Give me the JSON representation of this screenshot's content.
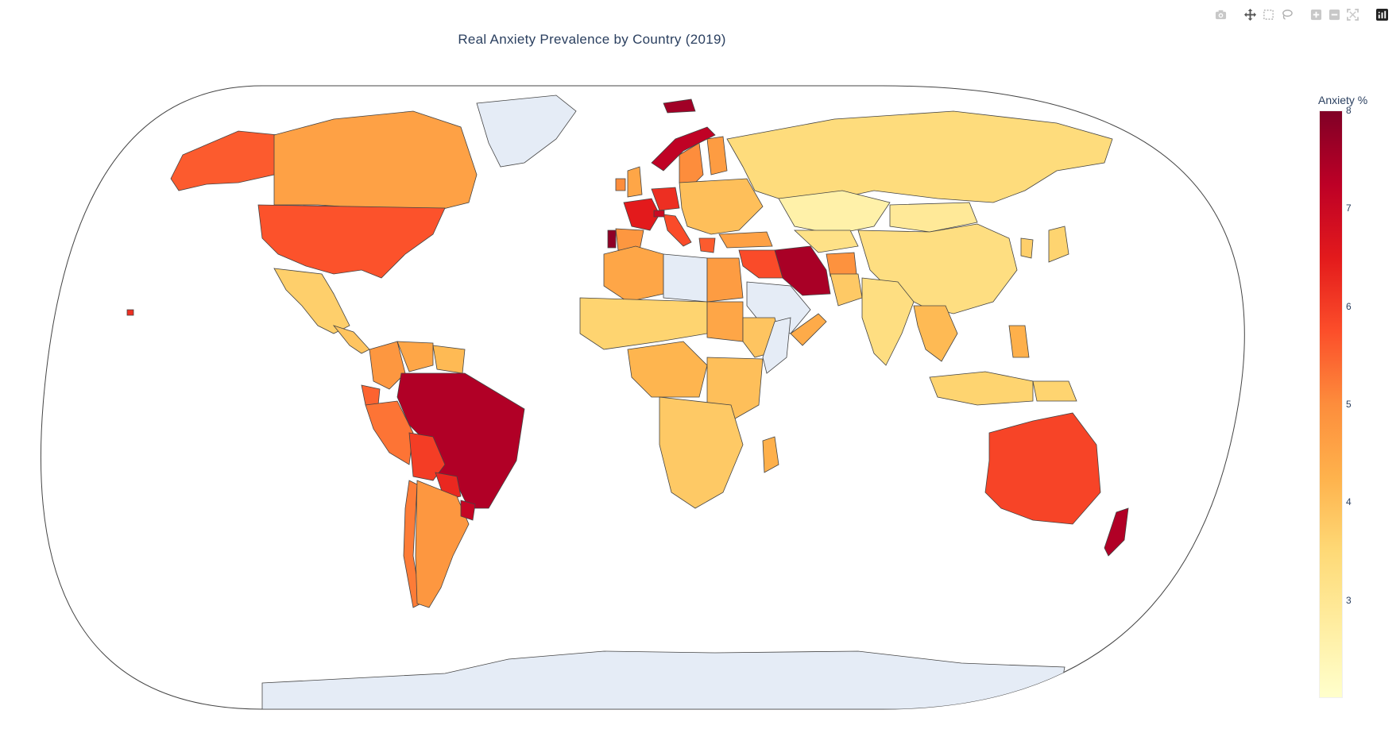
{
  "title": "Real Anxiety Prevalence by Country (2019)",
  "modebar": {
    "icons": [
      "camera-icon",
      "pan-icon",
      "box-select-icon",
      "lasso-icon",
      "zoom-in-icon",
      "zoom-out-icon",
      "autoscale-icon",
      "plotly-logo-icon"
    ]
  },
  "colorbar": {
    "title": "Anxiety %",
    "min": 2.0,
    "max": 8.0,
    "ticks": [
      "3",
      "4",
      "5",
      "6",
      "7",
      "8"
    ],
    "tick_values": [
      3,
      4,
      5,
      6,
      7,
      8
    ],
    "colorscale": [
      "#ffffcc",
      "#ffeda0",
      "#fed976",
      "#feb24c",
      "#fd8d3c",
      "#fc4e2a",
      "#e31a1c",
      "#bd0026",
      "#800026"
    ]
  },
  "map": {
    "projection": "natural earth",
    "no_data_color": "#e5ecf6",
    "border_color": "#444444",
    "regions": [
      {
        "name": "Greenland",
        "value": null
      },
      {
        "name": "Antarctica",
        "value": null
      },
      {
        "name": "Alaska",
        "value": 5.6
      },
      {
        "name": "Canada",
        "value": 4.6
      },
      {
        "name": "United States",
        "value": 5.7
      },
      {
        "name": "Mexico",
        "value": 3.7
      },
      {
        "name": "Central America",
        "value": 3.9
      },
      {
        "name": "Colombia",
        "value": 4.8
      },
      {
        "name": "Venezuela",
        "value": 4.5
      },
      {
        "name": "Guyana",
        "value": 4.1
      },
      {
        "name": "Ecuador",
        "value": 5.5
      },
      {
        "name": "Peru",
        "value": 5.3
      },
      {
        "name": "Brazil",
        "value": 7.4
      },
      {
        "name": "Bolivia",
        "value": 6.0
      },
      {
        "name": "Paraguay",
        "value": 6.3
      },
      {
        "name": "Chile",
        "value": 5.2
      },
      {
        "name": "Argentina",
        "value": 4.8
      },
      {
        "name": "Uruguay",
        "value": 7.1
      },
      {
        "name": "Iceland",
        "value": 7.6
      },
      {
        "name": "Norway",
        "value": 7.2
      },
      {
        "name": "Sweden",
        "value": 5.0
      },
      {
        "name": "Finland",
        "value": 4.7
      },
      {
        "name": "United Kingdom",
        "value": 4.5
      },
      {
        "name": "Ireland",
        "value": 5.0
      },
      {
        "name": "France",
        "value": 6.5
      },
      {
        "name": "Germany",
        "value": 6.2
      },
      {
        "name": "Portugal",
        "value": 7.8
      },
      {
        "name": "Spain",
        "value": 4.8
      },
      {
        "name": "Italy",
        "value": 5.8
      },
      {
        "name": "Switzerland",
        "value": 7.0
      },
      {
        "name": "Greece",
        "value": 5.6
      },
      {
        "name": "Eastern Europe",
        "value": 4.0
      },
      {
        "name": "Turkey",
        "value": 4.6
      },
      {
        "name": "Russia",
        "value": 3.4
      },
      {
        "name": "Kazakhstan",
        "value": 2.6
      },
      {
        "name": "Central Asia",
        "value": 3.2
      },
      {
        "name": "Mongolia",
        "value": 2.9
      },
      {
        "name": "China",
        "value": 3.3
      },
      {
        "name": "Korea",
        "value": 3.7
      },
      {
        "name": "Japan",
        "value": 3.6
      },
      {
        "name": "Iran",
        "value": 7.5
      },
      {
        "name": "Iraq/Syria",
        "value": 5.8
      },
      {
        "name": "Afghanistan",
        "value": 4.9
      },
      {
        "name": "Pakistan",
        "value": 3.8
      },
      {
        "name": "India",
        "value": 3.3
      },
      {
        "name": "Saudi Arabia",
        "value": null
      },
      {
        "name": "Yemen/Oman",
        "value": 4.4
      },
      {
        "name": "Southeast Asia",
        "value": 4.1
      },
      {
        "name": "Indonesia",
        "value": 3.6
      },
      {
        "name": "Philippines",
        "value": 4.3
      },
      {
        "name": "Papua New Guinea",
        "value": 3.6
      },
      {
        "name": "Australia",
        "value": 5.9
      },
      {
        "name": "New Zealand",
        "value": 7.4
      },
      {
        "name": "Morocco/Algeria",
        "value": 4.5
      },
      {
        "name": "Libya",
        "value": null
      },
      {
        "name": "Egypt",
        "value": 4.7
      },
      {
        "name": "Sahel",
        "value": 3.6
      },
      {
        "name": "Sudan",
        "value": 4.5
      },
      {
        "name": "Ethiopia",
        "value": 3.9
      },
      {
        "name": "Somalia",
        "value": null
      },
      {
        "name": "Central Africa",
        "value": 4.2
      },
      {
        "name": "East Africa",
        "value": 4.0
      },
      {
        "name": "Southern Africa",
        "value": 3.8
      },
      {
        "name": "Madagascar",
        "value": 4.3
      },
      {
        "name": "Hawaii",
        "value": 6.2
      }
    ]
  }
}
